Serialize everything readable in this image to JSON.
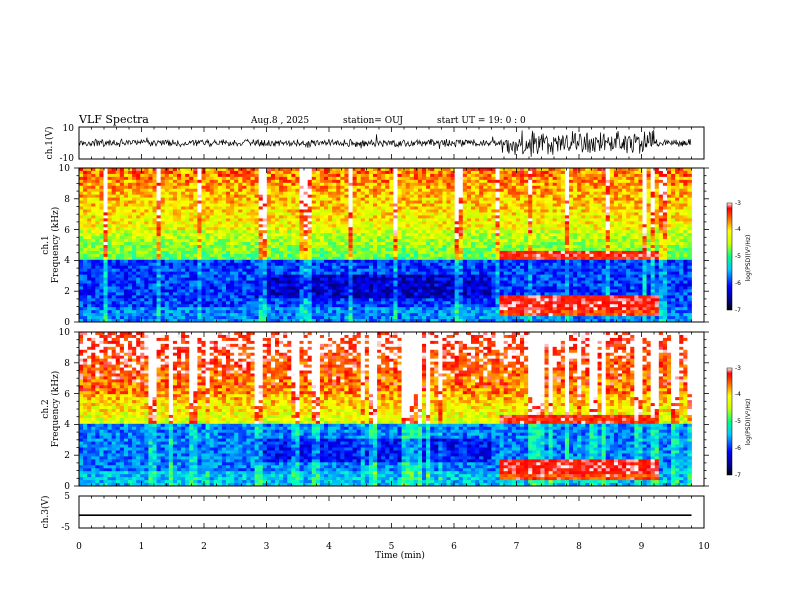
{
  "header": {
    "title": "VLF Spectra",
    "date": "Aug.8 , 2025",
    "station": "station= OUJ",
    "start_ut": "start UT = 19: 0 : 0"
  },
  "chart_data": {
    "type": "heatmap",
    "x_axis": {
      "label": "Time (min)",
      "range": [
        0,
        10
      ],
      "ticks": [
        "0",
        "1",
        "2",
        "3",
        "4",
        "5",
        "6",
        "7",
        "8",
        "9",
        "10"
      ],
      "data_end_min": 9.8
    },
    "panels": [
      {
        "id": "ch1-waveform",
        "type": "line",
        "ylabel": "ch.1(V)",
        "ylim": [
          -10,
          10
        ],
        "yticks": [
          "10",
          "-10"
        ]
      },
      {
        "id": "ch1-spectrogram",
        "type": "heatmap",
        "ylabel_top": "ch.1",
        "ylabel": "Frequency (kHz)",
        "ylim": [
          0,
          10
        ],
        "yticks": [
          "0",
          "2",
          "4",
          "6",
          "8",
          "10"
        ],
        "colorbar": {
          "label": "log(PSD)(V²/Hz)",
          "range": [
            -7,
            -3
          ],
          "ticks": [
            "-3",
            "-4",
            "-5",
            "-6",
            "-7"
          ]
        }
      },
      {
        "id": "ch2-spectrogram",
        "type": "heatmap",
        "ylabel_top": "ch.2",
        "ylabel": "Frequency (kHz)",
        "ylim": [
          0,
          10
        ],
        "yticks": [
          "0",
          "2",
          "4",
          "6",
          "8",
          "10"
        ],
        "colorbar": {
          "label": "log(PSD)(V²/Hz)",
          "range": [
            -7,
            -3
          ],
          "ticks": [
            "-3",
            "-4",
            "-5",
            "-6",
            "-7"
          ]
        }
      },
      {
        "id": "ch3-waveform",
        "type": "line",
        "ylabel": "ch.3(V)",
        "ylim": [
          -5,
          5
        ],
        "yticks": [
          "5",
          "-5"
        ],
        "constant_value": -1
      }
    ],
    "colormap": [
      "#000080",
      "#0000ff",
      "#00a0ff",
      "#00ffff",
      "#40ff80",
      "#c0ff00",
      "#ffff00",
      "#ff8000",
      "#ff0000",
      "#ffffff"
    ]
  }
}
